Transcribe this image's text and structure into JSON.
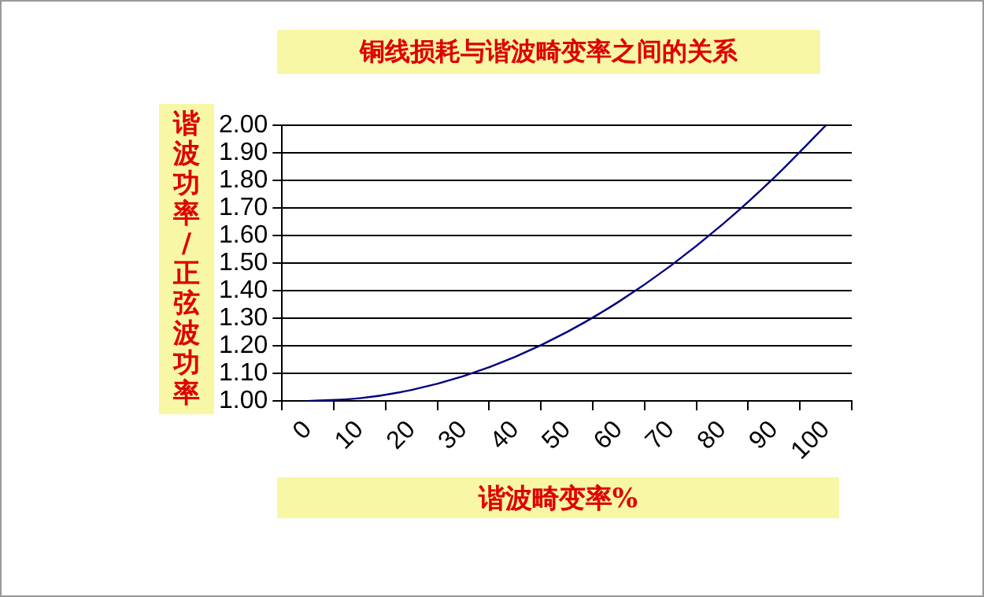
{
  "chart_data": {
    "type": "line",
    "title": "铜线损耗与谐波畸变率之间的关系",
    "xlabel": "谐波畸变率%",
    "ylabel": "谐波功率/正弦波功率",
    "categories": [
      "0",
      "10",
      "20",
      "30",
      "40",
      "50",
      "60",
      "70",
      "80",
      "90",
      "100"
    ],
    "series": [
      {
        "color": "#000080",
        "values": [
          1.0,
          1.01,
          1.04,
          1.09,
          1.16,
          1.25,
          1.36,
          1.49,
          1.64,
          1.81,
          2.0
        ]
      }
    ],
    "ylim": [
      1,
      2
    ],
    "yticks": [
      {
        "value": 1,
        "label": "1.00"
      },
      {
        "value": 1.1,
        "label": "1.10"
      },
      {
        "value": 1.2,
        "label": "1.20"
      },
      {
        "value": 1.3,
        "label": "1.30"
      },
      {
        "value": 1.4,
        "label": "1.40"
      },
      {
        "value": 1.5,
        "label": "1.50"
      },
      {
        "value": 1.6,
        "label": "1.60"
      },
      {
        "value": 1.7,
        "label": "1.70"
      },
      {
        "value": 1.8,
        "label": "1.80"
      },
      {
        "value": 1.9,
        "label": "1.90"
      },
      {
        "value": 2,
        "label": "2.00"
      }
    ],
    "grid": "y",
    "legend": false,
    "marker": "none",
    "line_style": "solid"
  }
}
